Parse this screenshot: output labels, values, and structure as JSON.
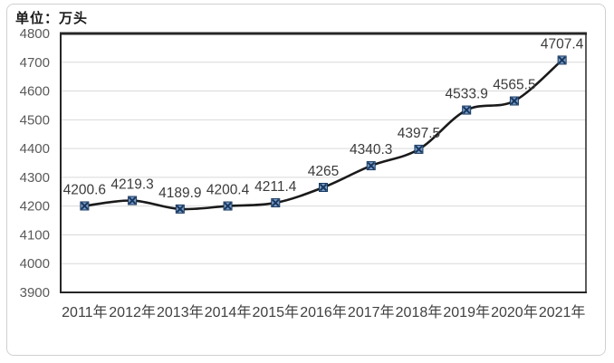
{
  "unit_label": "单位：万头",
  "chart_data": {
    "type": "line",
    "title": "",
    "categories": [
      "2011年",
      "2012年",
      "2013年",
      "2014年",
      "2015年",
      "2016年",
      "2017年",
      "2018年",
      "2019年",
      "2020年",
      "2021年"
    ],
    "values": [
      4200.6,
      4219.3,
      4189.9,
      4200.4,
      4211.4,
      4265,
      4340.3,
      4397.5,
      4533.9,
      4565.5,
      4707.4
    ],
    "point_labels": [
      "4200.6",
      "4219.3",
      "4189.9",
      "4200.4",
      "4211.4",
      "4265",
      "4340.3",
      "4397.5",
      "4533.9",
      "4565.5",
      "4707.4"
    ],
    "xlabel": "",
    "ylabel": "",
    "ylim": [
      3900,
      4800
    ],
    "ytick_step": 100,
    "grid": "horizontal",
    "legend": "none",
    "line_smoothed": true,
    "colors": {
      "line": "#1a1a1a",
      "marker_fill": "#7c9cc8",
      "marker_stroke": "#17375e",
      "grid": "#d9d9d9",
      "axis": "#262626",
      "tick_label": "#595959",
      "category_label": "#404040",
      "data_label": "#3b3b3b"
    }
  }
}
